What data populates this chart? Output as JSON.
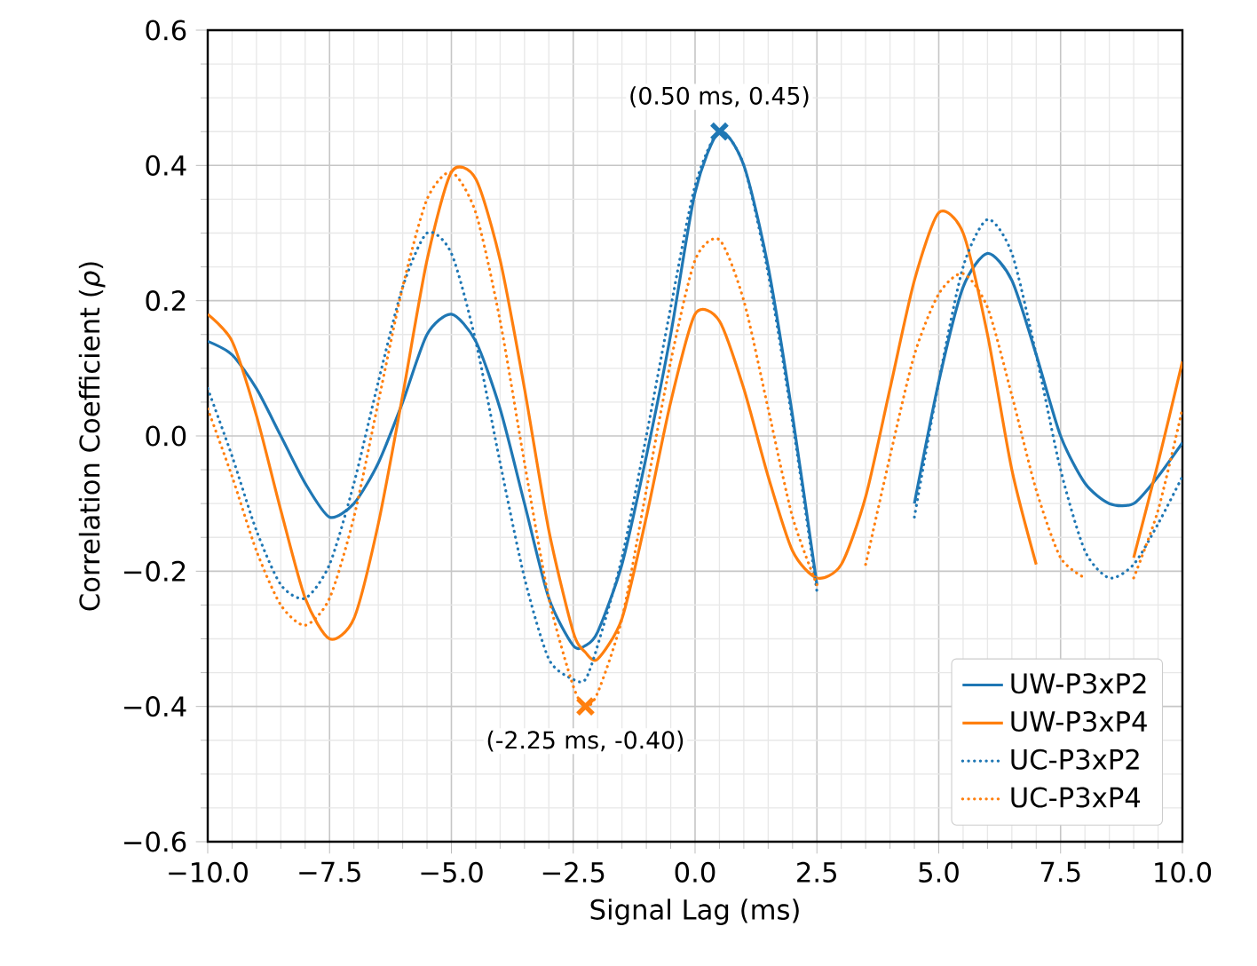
{
  "chart_data": {
    "type": "line",
    "xlabel": "Signal Lag (ms)",
    "ylabel": "Correlation Coefficient (*ρ*)",
    "x": [
      -10,
      -9.5,
      -9,
      -8.5,
      -8,
      -7.5,
      -7,
      -6.5,
      -6,
      -5.5,
      -5,
      -4.5,
      -4,
      -3.5,
      -3,
      -2.5,
      -2.25,
      -2,
      -1.5,
      -1,
      -0.5,
      0,
      0.5,
      1,
      1.5,
      2,
      2.5,
      3,
      3.5,
      4,
      4.5,
      5,
      5.5,
      6,
      6.5,
      7,
      7.5,
      8,
      8.5,
      9,
      9.5,
      10
    ],
    "series": [
      {
        "name": "UW-P3xP2",
        "color": "#1f77b4",
        "line_style": "solid",
        "values": [
          0.14,
          0.12,
          0.07,
          0.0,
          -0.07,
          -0.12,
          -0.1,
          -0.04,
          0.05,
          0.15,
          0.18,
          0.14,
          0.04,
          -0.1,
          -0.24,
          -0.31,
          -0.31,
          -0.29,
          -0.19,
          -0.03,
          0.15,
          0.36,
          0.45,
          0.4,
          0.25,
          0.03,
          -0.22,
          null,
          null,
          null,
          -0.1,
          0.08,
          0.22,
          0.27,
          0.23,
          0.12,
          0.0,
          -0.07,
          -0.1,
          -0.1,
          -0.06,
          -0.01
        ]
      },
      {
        "name": "UW-P3xP4",
        "color": "#ff7f0e",
        "line_style": "solid",
        "values": [
          0.18,
          0.14,
          0.03,
          -0.11,
          -0.24,
          -0.3,
          -0.27,
          -0.13,
          0.06,
          0.26,
          0.39,
          0.38,
          0.26,
          0.07,
          -0.14,
          -0.29,
          -0.32,
          -0.33,
          -0.27,
          -0.12,
          0.05,
          0.18,
          0.17,
          0.07,
          -0.06,
          -0.17,
          -0.21,
          -0.19,
          -0.09,
          0.07,
          0.23,
          0.33,
          0.3,
          0.15,
          -0.05,
          -0.19,
          null,
          null,
          null,
          -0.18,
          -0.04,
          0.11
        ]
      },
      {
        "name": "UC-P3xP2",
        "color": "#1f77b4",
        "line_style": "dotted",
        "values": [
          0.07,
          -0.03,
          -0.14,
          -0.22,
          -0.24,
          -0.19,
          -0.07,
          0.08,
          0.22,
          0.3,
          0.27,
          0.14,
          -0.04,
          -0.21,
          -0.33,
          -0.36,
          -0.36,
          -0.31,
          -0.18,
          0.0,
          0.19,
          0.37,
          0.45,
          0.4,
          0.24,
          0.02,
          -0.23,
          null,
          null,
          null,
          -0.12,
          0.08,
          0.25,
          0.32,
          0.27,
          0.12,
          -0.05,
          -0.17,
          -0.21,
          -0.19,
          -0.13,
          -0.06
        ]
      },
      {
        "name": "UC-P3xP4",
        "color": "#ff7f0e",
        "line_style": "dotted",
        "values": [
          0.04,
          -0.06,
          -0.17,
          -0.25,
          -0.28,
          -0.24,
          -0.12,
          0.05,
          0.22,
          0.35,
          0.39,
          0.33,
          0.17,
          -0.04,
          -0.24,
          -0.37,
          -0.4,
          -0.38,
          -0.27,
          -0.08,
          0.11,
          0.26,
          0.29,
          0.2,
          0.04,
          -0.12,
          -0.22,
          null,
          -0.19,
          -0.03,
          0.12,
          0.21,
          0.24,
          0.19,
          0.06,
          -0.08,
          -0.18,
          -0.21,
          null,
          -0.21,
          -0.11,
          0.04
        ]
      },
      {
        "type": "scatter",
        "marker": "cross",
        "color": "#1f77b4",
        "x": [
          0.5
        ],
        "values": [
          0.45
        ]
      },
      {
        "type": "scatter",
        "marker": "cross",
        "color": "#ff7f0e",
        "x": [
          -2.25
        ],
        "values": [
          -0.4
        ]
      }
    ],
    "annotations": [
      {
        "text": "(0.50 ms, 0.45)",
        "x": 0.5,
        "y": 0.45
      },
      {
        "text": "(-2.25 ms, -0.40)",
        "x": -2.25,
        "y": -0.4
      }
    ],
    "xlim": [
      -10,
      10
    ],
    "ylim": [
      -0.6,
      0.6
    ],
    "xticks": [
      {
        "value": -10,
        "label": "−10.0"
      },
      {
        "value": -7.5,
        "label": "−7.5"
      },
      {
        "value": -5,
        "label": "−5.0"
      },
      {
        "value": -2.5,
        "label": "−2.5"
      },
      {
        "value": 0,
        "label": "0.0"
      },
      {
        "value": 2.5,
        "label": "2.5"
      },
      {
        "value": 5,
        "label": "5.0"
      },
      {
        "value": 7.5,
        "label": "7.5"
      },
      {
        "value": 10,
        "label": "10.0"
      }
    ],
    "yticks": [
      {
        "value": -0.6,
        "label": "−0.6"
      },
      {
        "value": -0.4,
        "label": "−0.4"
      },
      {
        "value": -0.2,
        "label": "−0.2"
      },
      {
        "value": 0,
        "label": "0.0"
      },
      {
        "value": 0.2,
        "label": "0.2"
      },
      {
        "value": 0.4,
        "label": "0.4"
      },
      {
        "value": 0.6,
        "label": "0.6"
      }
    ],
    "grid": true,
    "legend": "bottom right"
  }
}
